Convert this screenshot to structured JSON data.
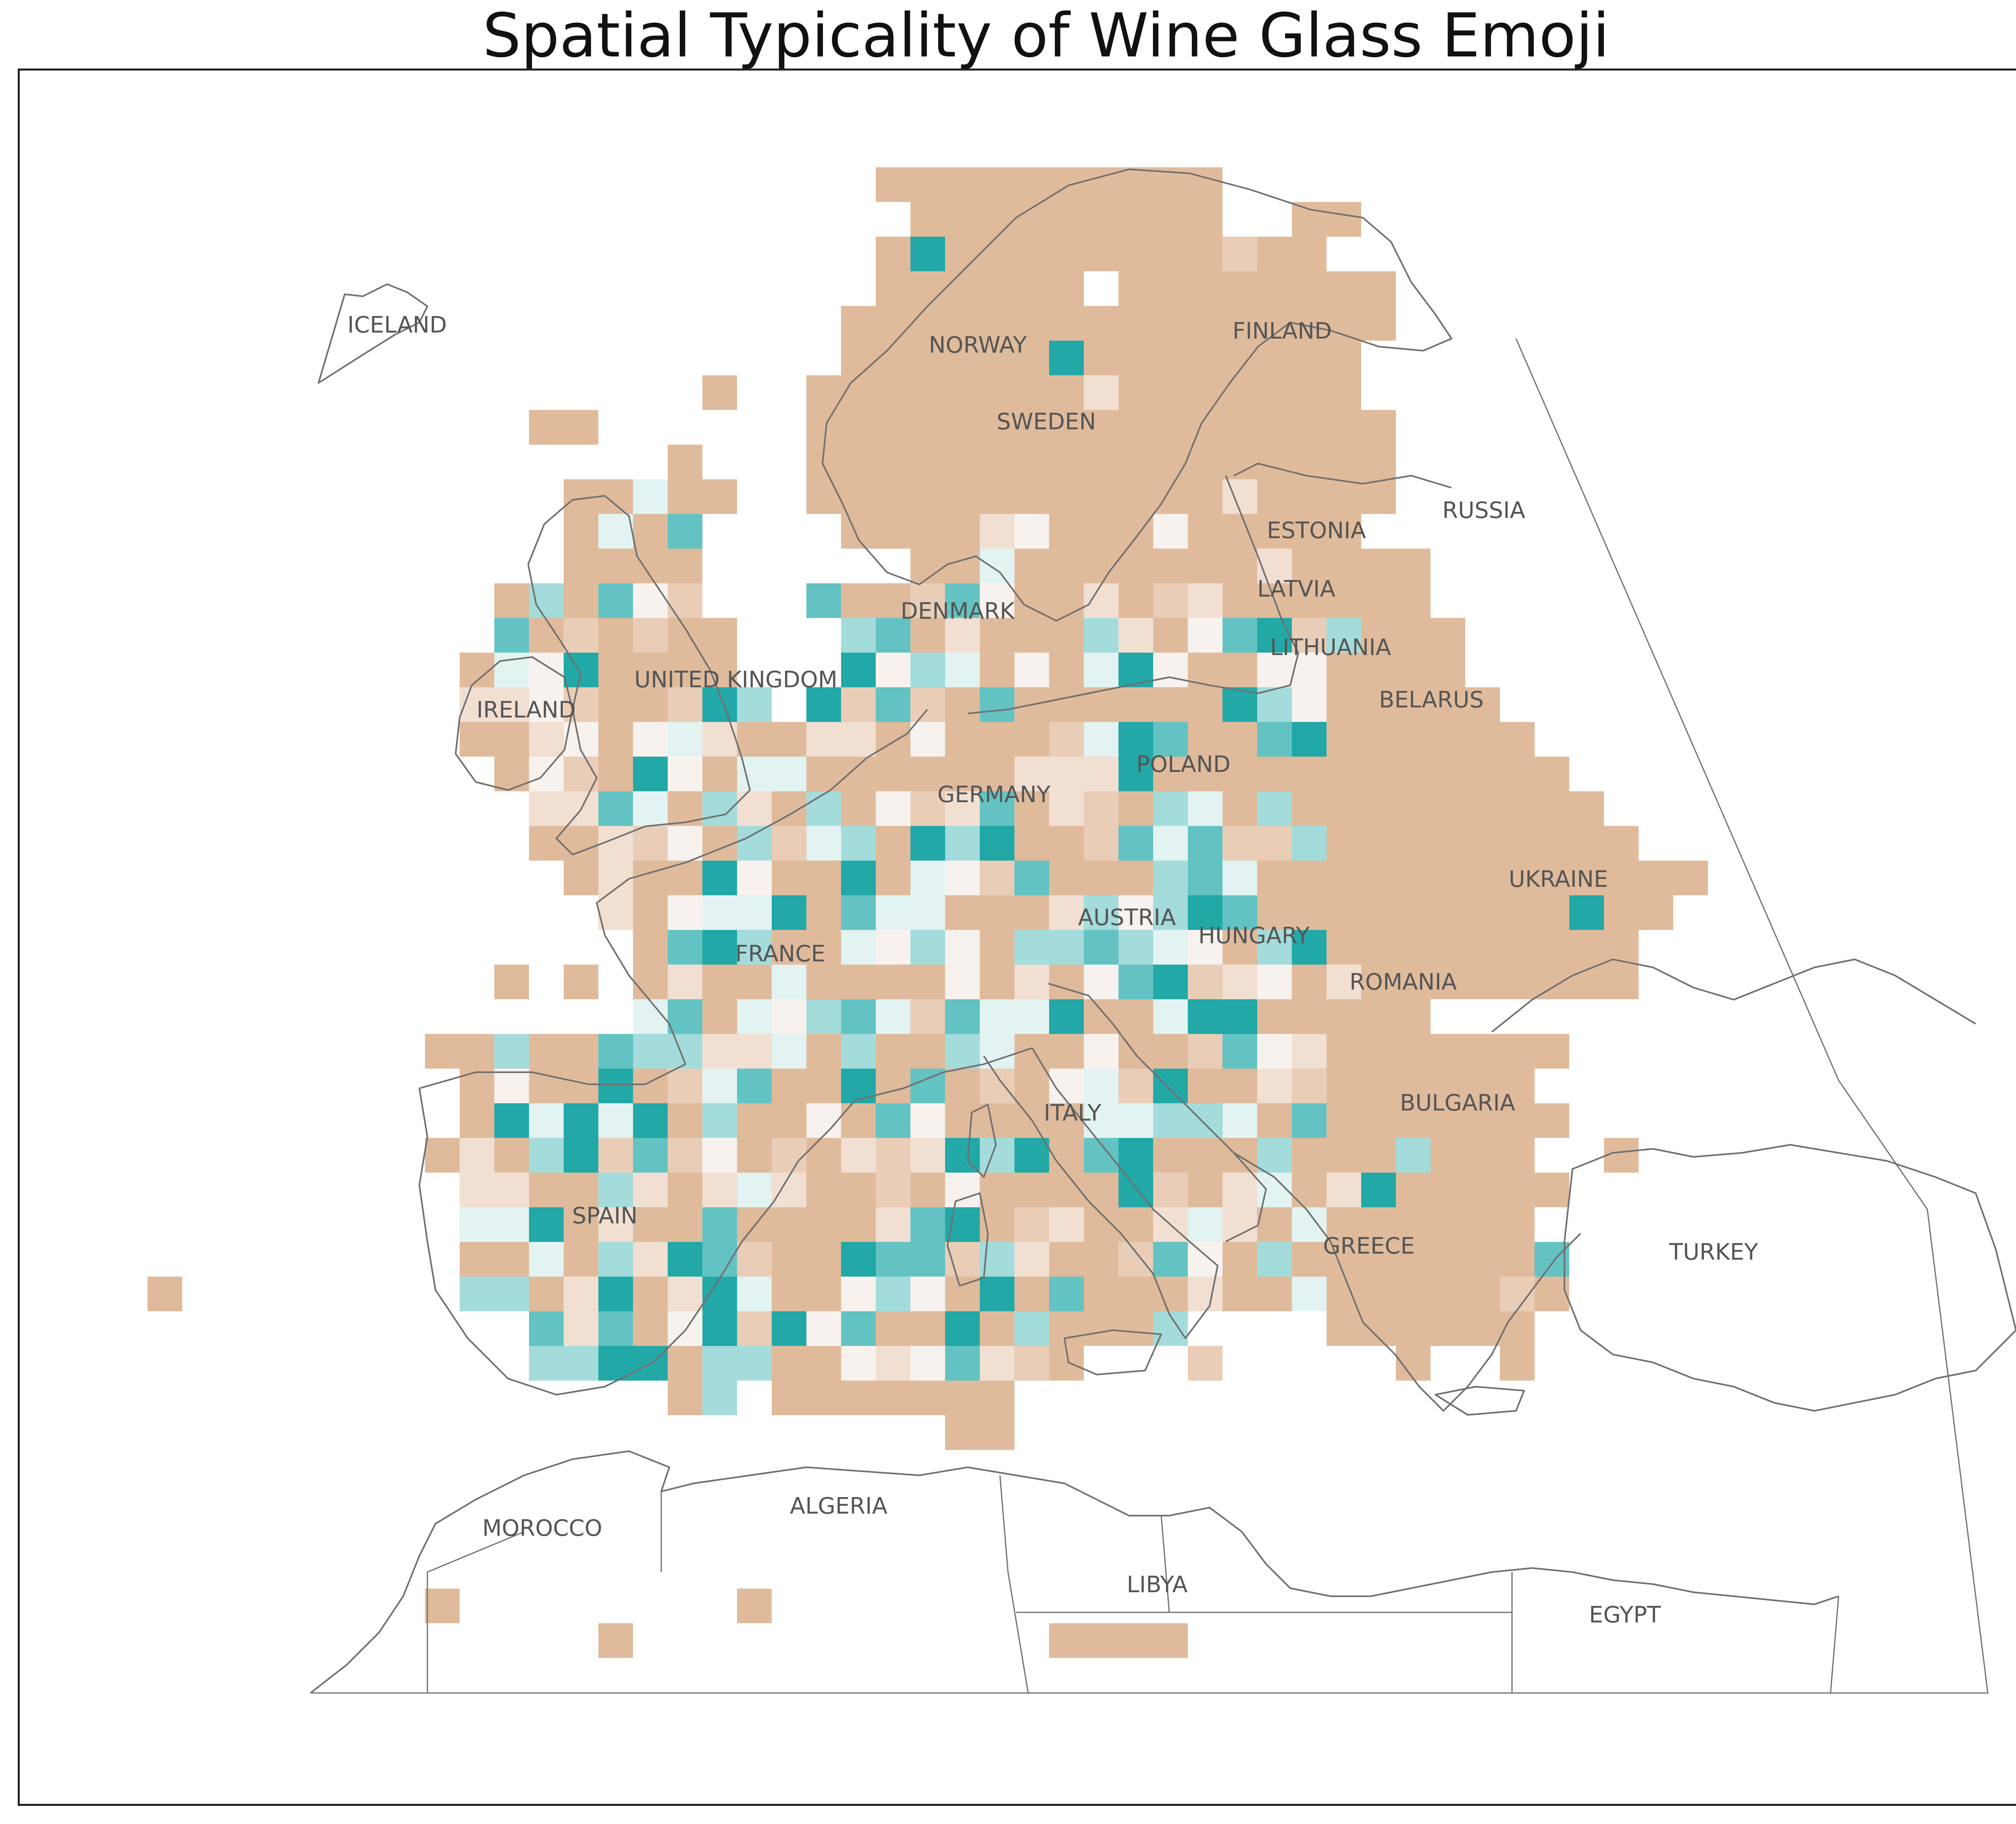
{
  "title": "Spatial Typicality of Wine Glass Emoji",
  "colors": {
    "tan": "#dfbb9c",
    "tan_light": "#e9cdb7",
    "tan_pale": "#f1dfd2",
    "cream": "#f8f2ee",
    "ice": "#e2f3f2",
    "aqua_light": "#a3dcdb",
    "aqua": "#63c3c2",
    "teal": "#22a8a6",
    "outline": "#707070",
    "label": "#555555"
  },
  "labels": {
    "iceland": "ICELAND",
    "norway": "NORWAY",
    "finland": "FINLAND",
    "sweden": "SWEDEN",
    "russia": "RUSSIA",
    "estonia": "ESTONIA",
    "latvia": "LATVIA",
    "denmark": "DENMARK",
    "lithuania": "LITHUANIA",
    "united_kingdom": "UNITED KINGDOM",
    "ireland": "IRELAND",
    "belarus": "BELARUS",
    "poland": "POLAND",
    "germany": "GERMANY",
    "ukraine": "UKRAINE",
    "austria": "AUSTRIA",
    "hungary": "HUNGARY",
    "france": "FRANCE",
    "romania": "ROMANIA",
    "bulgaria": "BULGARIA",
    "italy": "ITALY",
    "spain": "SPAIN",
    "greece": "GREECE",
    "turkey": "TURKEY",
    "morocco": "MOROCCO",
    "algeria": "ALGERIA",
    "libya": "LIBYA",
    "egypt": "EGYPT"
  }
}
